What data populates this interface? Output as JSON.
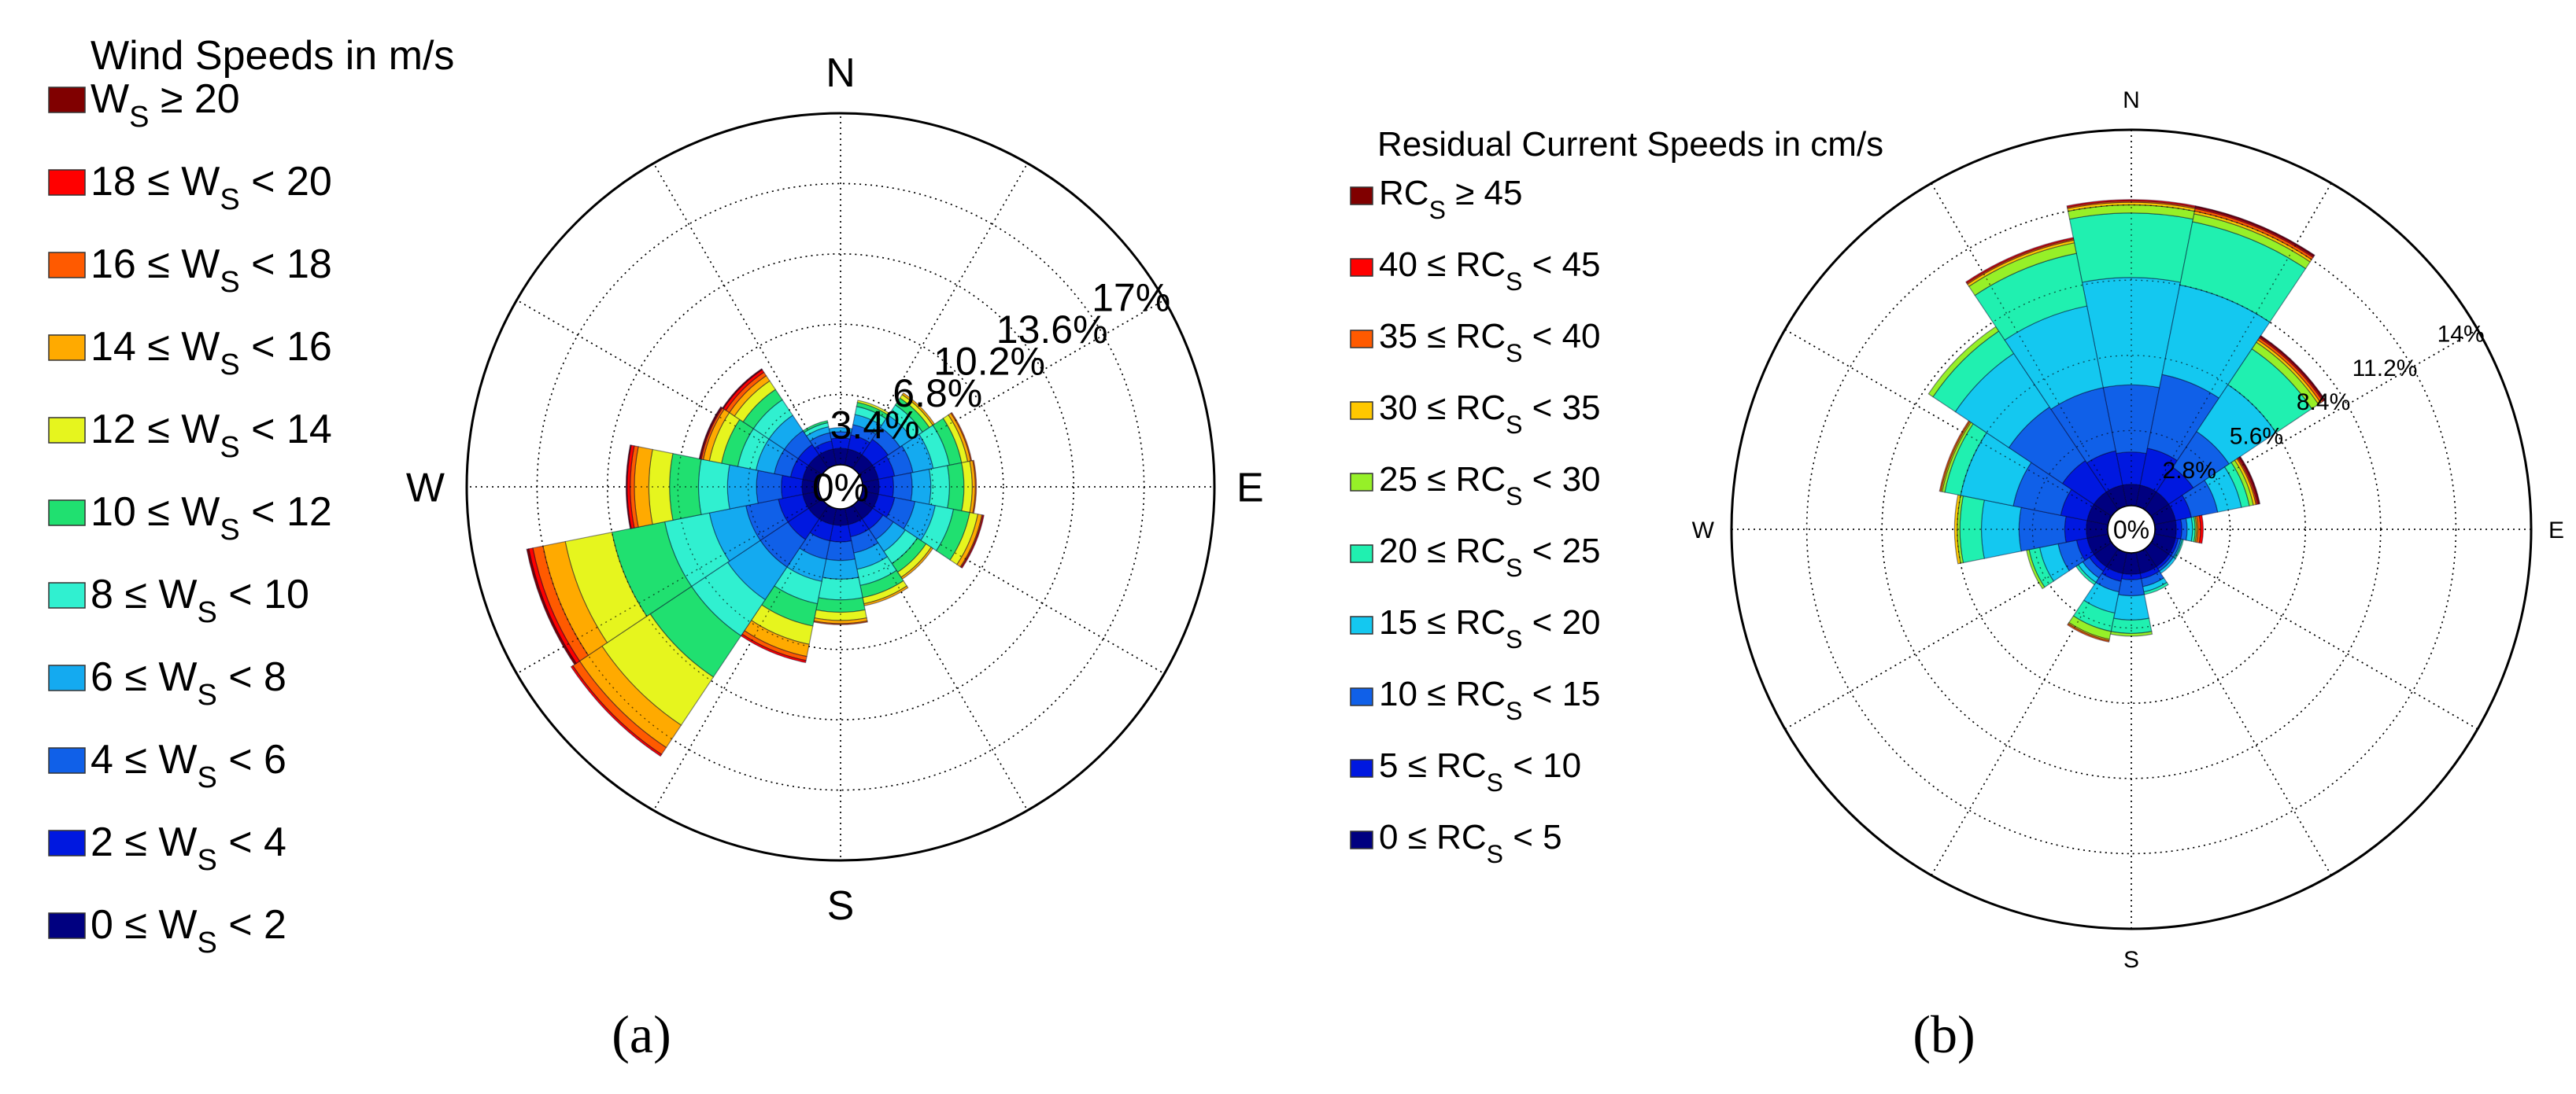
{
  "chart_data": [
    {
      "type": "windrose",
      "panel_label": "(a)",
      "legend_title": "Wind Speeds in m/s",
      "legend": [
        {
          "pre": "W",
          "sub": "S",
          "post": " ≥ 20",
          "color": "#800000"
        },
        {
          "pre": "18 ≤ W",
          "sub": "S",
          "post": " < 20",
          "color": "#ff0000"
        },
        {
          "pre": "16 ≤ W",
          "sub": "S",
          "post": " < 18",
          "color": "#ff5a00"
        },
        {
          "pre": "14 ≤ W",
          "sub": "S",
          "post": " < 16",
          "color": "#ffaa00"
        },
        {
          "pre": "12 ≤ W",
          "sub": "S",
          "post": " < 14",
          "color": "#e6f51e"
        },
        {
          "pre": "10 ≤ W",
          "sub": "S",
          "post": " < 12",
          "color": "#20e070"
        },
        {
          "pre": "8 ≤ W",
          "sub": "S",
          "post": " < 10",
          "color": "#30f0d0"
        },
        {
          "pre": "6 ≤ W",
          "sub": "S",
          "post": " < 8",
          "color": "#14aaf0"
        },
        {
          "pre": "4 ≤ W",
          "sub": "S",
          "post": " < 6",
          "color": "#1060e8"
        },
        {
          "pre": "2 ≤ W",
          "sub": "S",
          "post": " < 4",
          "color": "#0018e0"
        },
        {
          "pre": "0 ≤ W",
          "sub": "S",
          "post": " < 2",
          "color": "#000080"
        }
      ],
      "directions": [
        "N",
        "E",
        "S",
        "W"
      ],
      "center_label": "0%",
      "rmax": 17,
      "ring_values": [
        3.4,
        6.8,
        10.2,
        13.6,
        17
      ],
      "ring_labels": [
        "3.4%",
        "6.8%",
        "10.2%",
        "13.6%",
        "17%"
      ],
      "sector_width_deg": 22.5,
      "sectors": [
        {
          "dir_deg": 0,
          "cumulative": [
            0.8,
            1.3,
            1.6,
            1.8,
            1.8,
            1.8,
            1.8,
            1.8,
            1.8,
            1.8,
            1.8
          ]
        },
        {
          "dir_deg": 22.5,
          "cumulative": [
            0.8,
            1.5,
            2.0,
            2.5,
            2.9,
            3.1,
            3.2,
            3.2,
            3.2,
            3.2,
            3.2
          ]
        },
        {
          "dir_deg": 45,
          "cumulative": [
            0.8,
            1.7,
            2.4,
            3.1,
            3.7,
            4.1,
            4.3,
            4.4,
            4.4,
            4.4,
            4.4
          ]
        },
        {
          "dir_deg": 67.5,
          "cumulative": [
            0.8,
            1.6,
            2.5,
            3.5,
            4.3,
            4.9,
            5.2,
            5.35,
            5.4,
            5.4,
            5.4
          ]
        },
        {
          "dir_deg": 90,
          "cumulative": [
            0.8,
            1.5,
            2.4,
            3.3,
            4.2,
            4.9,
            5.3,
            5.45,
            5.5,
            5.5,
            5.5
          ]
        },
        {
          "dir_deg": 112.5,
          "cumulative": [
            0.8,
            1.6,
            2.6,
            3.6,
            4.5,
            5.3,
            5.7,
            5.9,
            5.95,
            6.0,
            6.0
          ]
        },
        {
          "dir_deg": 135,
          "cumulative": [
            0.8,
            1.4,
            2.0,
            2.7,
            3.4,
            3.9,
            4.2,
            4.3,
            4.3,
            4.3,
            4.3
          ]
        },
        {
          "dir_deg": 157.5,
          "cumulative": [
            0.8,
            1.4,
            2.2,
            3.0,
            3.8,
            4.4,
            4.7,
            4.8,
            4.8,
            4.8,
            4.8
          ]
        },
        {
          "dir_deg": 180,
          "cumulative": [
            0.8,
            1.6,
            2.5,
            3.4,
            4.4,
            5.0,
            5.4,
            5.55,
            5.6,
            5.6,
            5.6
          ]
        },
        {
          "dir_deg": 202.5,
          "cumulative": [
            0.8,
            1.6,
            2.5,
            3.6,
            4.7,
            5.8,
            6.7,
            7.3,
            7.5,
            7.6,
            7.6
          ]
        },
        {
          "dir_deg": 225,
          "cumulative": [
            0.8,
            2.0,
            3.6,
            5.5,
            7.6,
            10.0,
            12.8,
            14.1,
            14.5,
            14.6,
            14.6
          ]
        },
        {
          "dir_deg": 247.5,
          "cumulative": [
            0.8,
            2.0,
            3.6,
            5.4,
            7.6,
            10.2,
            12.5,
            13.6,
            14.1,
            14.3,
            14.4
          ]
        },
        {
          "dir_deg": 270,
          "cumulative": [
            0.8,
            1.8,
            3.0,
            4.4,
            5.8,
            7.2,
            8.2,
            8.9,
            9.1,
            9.25,
            9.3
          ]
        },
        {
          "dir_deg": 292.5,
          "cumulative": [
            0.8,
            1.4,
            2.2,
            3.1,
            4.0,
            4.8,
            5.4,
            5.7,
            5.8,
            5.85,
            5.9
          ]
        },
        {
          "dir_deg": 315,
          "cumulative": [
            0.8,
            1.4,
            2.2,
            3.1,
            4.0,
            4.6,
            5.1,
            5.4,
            5.6,
            5.75,
            5.8
          ]
        },
        {
          "dir_deg": 337.5,
          "cumulative": [
            0.8,
            1.2,
            1.6,
            1.9,
            2.1,
            2.2,
            2.2,
            2.2,
            2.2,
            2.2,
            2.2
          ]
        }
      ]
    },
    {
      "type": "windrose",
      "panel_label": "(b)",
      "legend_title": "Residual Current Speeds in cm/s",
      "legend": [
        {
          "pre": "RC",
          "sub": "S",
          "post": " ≥ 45",
          "color": "#800000"
        },
        {
          "pre": "40 ≤ RC",
          "sub": "S",
          "post": " < 45",
          "color": "#ff0000"
        },
        {
          "pre": "35 ≤ RC",
          "sub": "S",
          "post": " < 40",
          "color": "#ff5a00"
        },
        {
          "pre": "30 ≤ RC",
          "sub": "S",
          "post": " < 35",
          "color": "#ffc800"
        },
        {
          "pre": "25 ≤ RC",
          "sub": "S",
          "post": " < 30",
          "color": "#96f028"
        },
        {
          "pre": "20 ≤ RC",
          "sub": "S",
          "post": " < 25",
          "color": "#20f0b0"
        },
        {
          "pre": "15 ≤ RC",
          "sub": "S",
          "post": " < 20",
          "color": "#14c8f0"
        },
        {
          "pre": "10 ≤ RC",
          "sub": "S",
          "post": " < 15",
          "color": "#1060e8"
        },
        {
          "pre": "5 ≤ RC",
          "sub": "S",
          "post": " < 10",
          "color": "#0018e0"
        },
        {
          "pre": "0 ≤ RC",
          "sub": "S",
          "post": " < 5",
          "color": "#000080"
        }
      ],
      "directions": [
        "N",
        "E",
        "S",
        "W"
      ],
      "center_label": "0%",
      "rmax": 14,
      "ring_values": [
        2.8,
        5.6,
        8.4,
        11.2,
        14
      ],
      "ring_labels": [
        "2.8%",
        "5.6%",
        "8.4%",
        "11.2%",
        "14%"
      ],
      "sector_width_deg": 22.5,
      "sectors": [
        {
          "dir_deg": 0,
          "cumulative": [
            0.8,
            2.0,
            4.5,
            8.5,
            10.9,
            11.2,
            11.3,
            11.35,
            11.4,
            11.4
          ]
        },
        {
          "dir_deg": 22.5,
          "cumulative": [
            0.8,
            2.2,
            5.0,
            8.4,
            10.8,
            11.1,
            11.2,
            11.3,
            11.35,
            11.4
          ]
        },
        {
          "dir_deg": 45,
          "cumulative": [
            0.8,
            1.9,
            3.5,
            5.6,
            7.2,
            7.5,
            7.6,
            7.7,
            7.75,
            7.8
          ]
        },
        {
          "dir_deg": 67.5,
          "cumulative": [
            0.8,
            1.4,
            2.4,
            3.3,
            3.6,
            3.75,
            3.85,
            3.9,
            3.95,
            4.0
          ]
        },
        {
          "dir_deg": 90,
          "cumulative": [
            0.8,
            1.0,
            1.2,
            1.4,
            1.5,
            1.55,
            1.6,
            1.7,
            1.8,
            1.8
          ]
        },
        {
          "dir_deg": 112.5,
          "cumulative": [
            0.8,
            0.9,
            1.0,
            1.05,
            1.1,
            1.1,
            1.1,
            1.1,
            1.1,
            1.1
          ]
        },
        {
          "dir_deg": 135,
          "cumulative": [
            0.8,
            0.9,
            1.0,
            1.1,
            1.1,
            1.1,
            1.1,
            1.1,
            1.1,
            1.1
          ]
        },
        {
          "dir_deg": 157.5,
          "cumulative": [
            0.8,
            1.0,
            1.3,
            1.5,
            1.6,
            1.6,
            1.6,
            1.6,
            1.6,
            1.6
          ]
        },
        {
          "dir_deg": 180,
          "cumulative": [
            0.8,
            1.0,
            1.6,
            2.5,
            3.0,
            3.1,
            3.1,
            3.1,
            3.1,
            3.1
          ]
        },
        {
          "dir_deg": 202.5,
          "cumulative": [
            0.8,
            1.1,
            1.5,
            2.3,
            3.0,
            3.3,
            3.35,
            3.4,
            3.4,
            3.4
          ]
        },
        {
          "dir_deg": 225,
          "cumulative": [
            0.8,
            1.0,
            1.3,
            1.5,
            1.6,
            1.6,
            1.6,
            1.6,
            1.6,
            1.6
          ]
        },
        {
          "dir_deg": 247.5,
          "cumulative": [
            0.8,
            1.2,
            1.9,
            2.6,
            3.0,
            3.1,
            3.1,
            3.1,
            3.1,
            3.1
          ]
        },
        {
          "dir_deg": 270,
          "cumulative": [
            0.8,
            1.6,
            3.3,
            4.7,
            5.5,
            5.6,
            5.7,
            5.7,
            5.7,
            5.7
          ]
        },
        {
          "dir_deg": 292.5,
          "cumulative": [
            0.8,
            1.8,
            3.6,
            5.6,
            6.2,
            6.3,
            6.35,
            6.4,
            6.4,
            6.4
          ]
        },
        {
          "dir_deg": 315,
          "cumulative": [
            0.8,
            2.2,
            4.6,
            7.0,
            8.0,
            8.2,
            8.2,
            8.2,
            8.2,
            8.2
          ]
        },
        {
          "dir_deg": 337.5,
          "cumulative": [
            0.8,
            2.1,
            4.5,
            7.6,
            9.6,
            10.0,
            10.1,
            10.15,
            10.2,
            10.2
          ]
        }
      ]
    }
  ]
}
